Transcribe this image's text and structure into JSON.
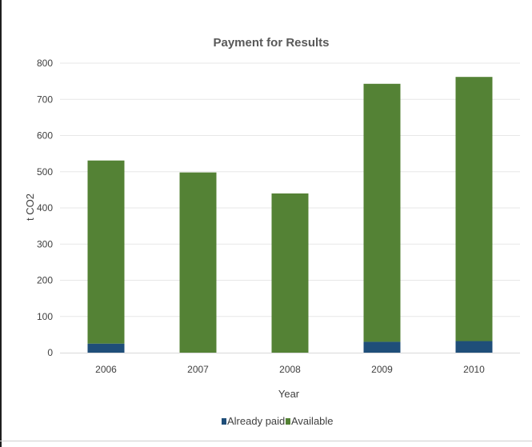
{
  "chart_data": {
    "type": "bar",
    "stacked": true,
    "title": "Payment for Results",
    "xlabel": "Year",
    "ylabel": "t CO2",
    "categories": [
      "2006",
      "2007",
      "2008",
      "2009",
      "2010"
    ],
    "series": [
      {
        "name": "Already paid",
        "color": "#1f4e79",
        "values": [
          25,
          0,
          0,
          30,
          32
        ]
      },
      {
        "name": "Available",
        "color": "#548235",
        "values": [
          506,
          498,
          440,
          713,
          730
        ]
      }
    ],
    "ylim": [
      0,
      800
    ],
    "yticks": [
      0,
      100,
      200,
      300,
      400,
      500,
      600,
      700,
      800
    ],
    "grid": true,
    "legend": "bottom"
  }
}
